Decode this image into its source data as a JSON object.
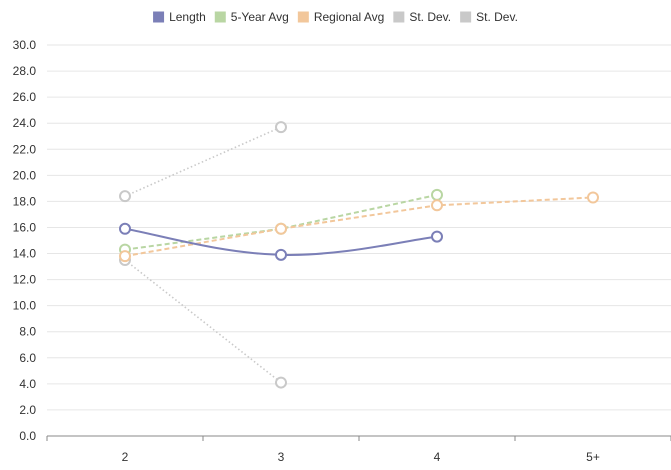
{
  "chart_data": {
    "type": "line",
    "categories": [
      "2",
      "3",
      "4",
      "5+"
    ],
    "ylim": [
      0,
      30
    ],
    "yticks": [
      "0.0",
      "2.0",
      "4.0",
      "6.0",
      "8.0",
      "10.0",
      "12.0",
      "14.0",
      "16.0",
      "18.0",
      "20.0",
      "22.0",
      "24.0",
      "26.0",
      "28.0",
      "30.0"
    ],
    "grid": true,
    "legend_position": "top",
    "series": [
      {
        "name": "Length",
        "values": [
          15.9,
          13.9,
          15.3,
          null
        ],
        "color": "#7b7fb7",
        "style": "solid",
        "smooth": true
      },
      {
        "name": "5-Year Avg",
        "values": [
          14.3,
          15.9,
          18.5,
          null
        ],
        "color": "#b9d6a3",
        "style": "dashed"
      },
      {
        "name": "Regional Avg",
        "values": [
          13.8,
          15.9,
          17.7,
          18.3
        ],
        "color": "#f2c79b",
        "style": "dashed"
      },
      {
        "name": "St. Dev.",
        "values": [
          18.4,
          23.7,
          null,
          null
        ],
        "color": "#c9c9c9",
        "style": "dotted"
      },
      {
        "name": "St. Dev.",
        "values": [
          13.5,
          4.1,
          null,
          null
        ],
        "color": "#c9c9c9",
        "style": "dotted"
      }
    ]
  }
}
